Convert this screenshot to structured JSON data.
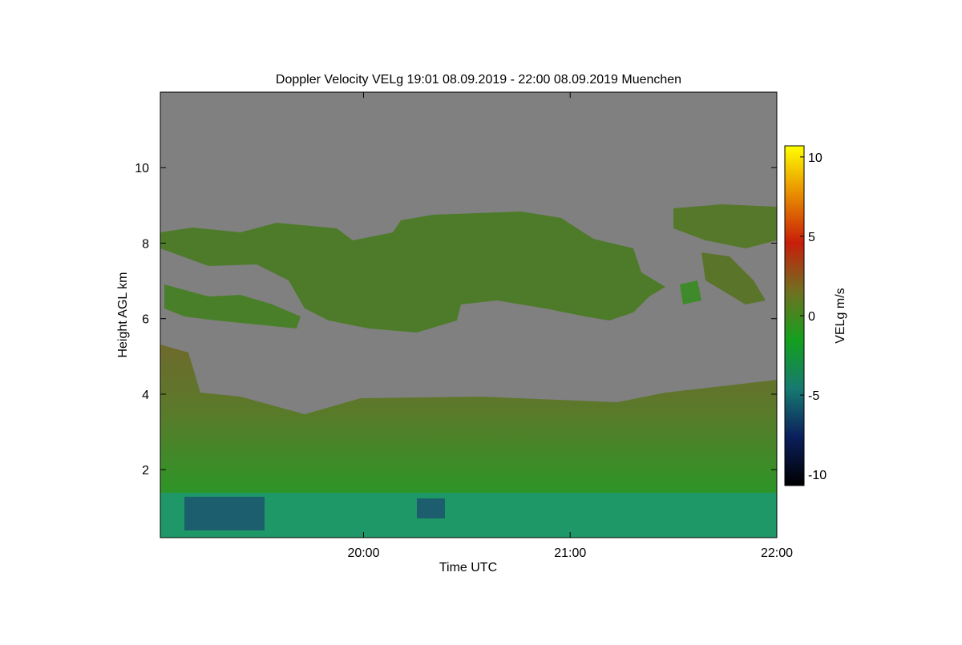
{
  "chart_data": {
    "type": "heatmap",
    "title": "Doppler Velocity VELg   19:01 08.09.2019 - 22:00 08.09.2019 Muenchen",
    "x_label": "Time UTC",
    "y_label": "Height AGL km",
    "colorbar_label": "VELg m/s",
    "xlim": [
      19.0167,
      22
    ],
    "xticks": [
      {
        "value": 20,
        "label": "20:00"
      },
      {
        "value": 21,
        "label": "21:00"
      },
      {
        "value": 22,
        "label": "22:00"
      }
    ],
    "ylim": [
      0.2,
      12
    ],
    "yticks": [
      2,
      4,
      6,
      8,
      10
    ],
    "clim": [
      -10.7,
      10.7
    ],
    "cticks": [
      -10,
      -5,
      0,
      5,
      10
    ],
    "colormap": [
      "#000000",
      "#0b1f5c",
      "#167a70",
      "#14a01e",
      "#707020",
      "#c81e0a",
      "#e88c00",
      "#ffff00"
    ],
    "background": "#808080"
  }
}
